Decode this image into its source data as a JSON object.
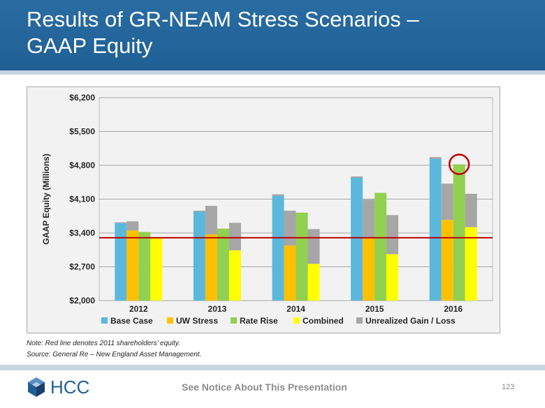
{
  "header": {
    "title_line1": "Results of GR-NEAM Stress Scenarios –",
    "title_line2": "GAAP Equity"
  },
  "chart_data": {
    "type": "bar",
    "title": "",
    "xlabel": "",
    "ylabel": "GAAP Equity (Millions)",
    "ylim": [
      2000,
      6200
    ],
    "yticks": [
      2000,
      2700,
      3400,
      4100,
      4800,
      5500,
      6200
    ],
    "ytick_labels": [
      "$2,000",
      "$2,700",
      "$3,400",
      "$4,100",
      "$4,800",
      "$5,500",
      "$6,200"
    ],
    "categories": [
      "2012",
      "2013",
      "2014",
      "2015",
      "2016"
    ],
    "grid": true,
    "legend_position": "bottom",
    "stacked_component": "Unrealized Gain / Loss",
    "series": [
      {
        "name": "Base Case",
        "color": "#5bb8dc",
        "values": [
          3600,
          3840,
          4170,
          4540,
          4930
        ]
      },
      {
        "name": "UW Stress",
        "color": "#ffc000",
        "values": [
          3450,
          3370,
          3140,
          3290,
          3670
        ]
      },
      {
        "name": "Rate Rise",
        "color": "#92d050",
        "values": [
          3420,
          3490,
          3820,
          4230,
          4820
        ]
      },
      {
        "name": "Combined",
        "color": "#ffff00",
        "values": [
          3290,
          3040,
          2760,
          2960,
          3520
        ]
      },
      {
        "name": "Unrealized Gain / Loss",
        "color": "#a6a6a6",
        "values": [
          [
            20,
            190,
            0,
            0
          ],
          [
            20,
            590,
            0,
            570
          ],
          [
            30,
            720,
            0,
            720
          ],
          [
            30,
            800,
            0,
            810
          ],
          [
            40,
            750,
            0,
            690
          ]
        ]
      }
    ],
    "reference_line": {
      "value": 3300,
      "color": "#c00000"
    },
    "highlight_marker": {
      "category": "2016",
      "series": "Rate Rise",
      "value": 4820,
      "color": "#c00000"
    }
  },
  "notes": {
    "line1": "Note: Red line denotes 2011 shareholders’ equity.",
    "line2": "Source: General Re – New England Asset Management."
  },
  "footer": {
    "logo_text": "HCC",
    "notice": "See Notice About This Presentation",
    "page_number": "123"
  }
}
